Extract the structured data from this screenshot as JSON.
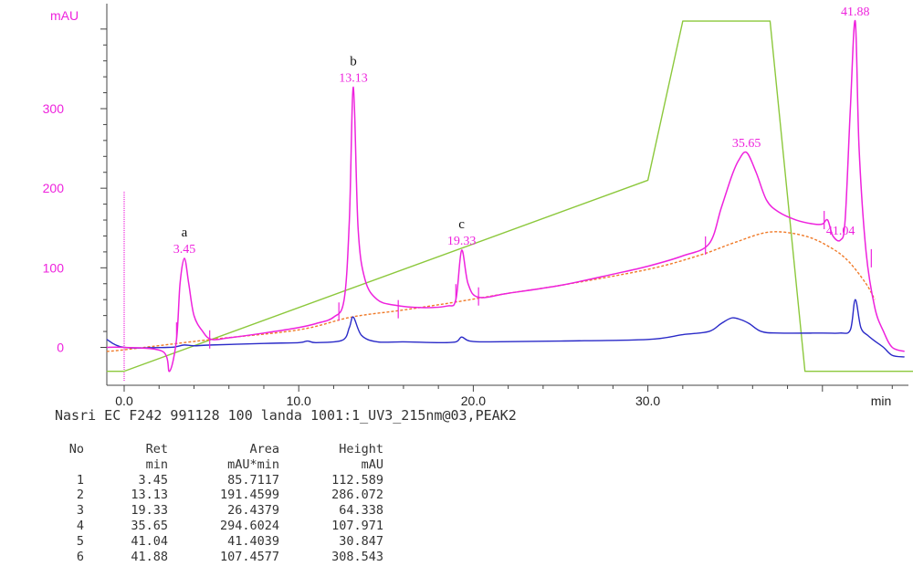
{
  "chart_data": {
    "type": "line",
    "y_unit": "mAU",
    "x_unit": "min",
    "x_ticks": [
      "0.0",
      "10.0",
      "20.0",
      "30.0"
    ],
    "y_ticks": [
      "0",
      "100",
      "200",
      "300"
    ],
    "xlim": [
      -1,
      46
    ],
    "ylim": [
      -35,
      430
    ],
    "colors": {
      "magenta": "#ee22dd",
      "blue": "#2a2ac8",
      "green": "#8cc83c",
      "orange": "#f07a28",
      "axis": "#444444"
    },
    "series": [
      {
        "color": "magenta",
        "x": [
          -1,
          0,
          2.2,
          2.6,
          3.0,
          3.2,
          3.45,
          3.7,
          4.0,
          4.5,
          5.0,
          6.0,
          8.0,
          10.0,
          11.0,
          12.0,
          12.6,
          12.9,
          13.13,
          13.4,
          13.8,
          14.5,
          15.5,
          17.0,
          18.5,
          19.0,
          19.33,
          19.7,
          20.3,
          22.0,
          25.0,
          28.0,
          30.0,
          32.0,
          33.5,
          34.2,
          34.8,
          35.2,
          35.65,
          36.2,
          36.8,
          37.5,
          38.5,
          39.5,
          40.0,
          40.3,
          40.6,
          41.04,
          41.3,
          41.6,
          41.88,
          42.1,
          42.5,
          43.0,
          43.5,
          44.0,
          44.7
        ],
        "y": [
          0,
          0,
          -5,
          -30,
          10,
          80,
          112,
          80,
          40,
          20,
          10,
          12,
          18,
          25,
          30,
          38,
          60,
          160,
          327,
          150,
          85,
          60,
          53,
          50,
          52,
          60,
          122,
          80,
          63,
          68,
          78,
          92,
          102,
          115,
          130,
          175,
          215,
          235,
          245,
          220,
          185,
          170,
          160,
          155,
          155,
          160,
          140,
          135,
          160,
          300,
          410,
          250,
          120,
          50,
          20,
          0,
          -5
        ]
      },
      {
        "color": "blue",
        "x": [
          -1,
          0,
          2.5,
          3.0,
          3.45,
          4.0,
          5.0,
          8.0,
          10.0,
          10.5,
          11.0,
          12.5,
          12.9,
          13.13,
          13.6,
          14.5,
          16.0,
          18.0,
          19.0,
          19.33,
          19.8,
          21.0,
          25.0,
          30.0,
          32.0,
          33.5,
          34.2,
          34.8,
          35.3,
          35.8,
          36.5,
          37.5,
          40.0,
          41.0,
          41.6,
          41.88,
          42.2,
          42.6,
          43.0,
          43.5,
          44.0,
          44.7
        ],
        "y": [
          10,
          0,
          0,
          1,
          3,
          2,
          3,
          5,
          6,
          8,
          6,
          9,
          25,
          38,
          15,
          7,
          7,
          6,
          7,
          13,
          8,
          7,
          8,
          10,
          16,
          20,
          30,
          37,
          35,
          30,
          20,
          18,
          18,
          18,
          22,
          60,
          25,
          15,
          8,
          0,
          -10,
          -12
        ]
      },
      {
        "color": "green",
        "x": [
          -1,
          0,
          30,
          32.0,
          37.0,
          39.0,
          45.2
        ],
        "y": [
          -30,
          -30,
          210,
          410,
          410,
          -30,
          -30
        ]
      },
      {
        "color": "orange",
        "dashed": true,
        "x": [
          -1,
          0,
          5,
          10,
          13,
          16,
          19,
          22,
          25,
          30,
          33,
          35,
          37,
          39,
          40.5,
          41.5,
          42.5,
          43.0
        ],
        "y": [
          -5,
          -3,
          10,
          22,
          38,
          47,
          57,
          68,
          78,
          98,
          116,
          132,
          145,
          140,
          125,
          108,
          80,
          60
        ]
      }
    ],
    "peak_labels": [
      {
        "x": 3.45,
        "y": 112,
        "rt": "3.45",
        "letter": "a"
      },
      {
        "x": 13.13,
        "y": 327,
        "rt": "13.13",
        "letter": "b"
      },
      {
        "x": 19.33,
        "y": 122,
        "rt": "19.33",
        "letter": "c"
      },
      {
        "x": 35.65,
        "y": 245,
        "rt": "35.65",
        "letter": ""
      },
      {
        "x": 41.04,
        "y": 135,
        "rt": "41.04",
        "letter": ""
      },
      {
        "x": 41.88,
        "y": 410,
        "rt": "41.88",
        "letter": ""
      }
    ],
    "integration_marks": [
      {
        "x": 3.0,
        "y": 20
      },
      {
        "x": 4.9,
        "y": 10
      },
      {
        "x": 12.3,
        "y": 45
      },
      {
        "x": 15.7,
        "y": 48
      },
      {
        "x": 19.0,
        "y": 68
      },
      {
        "x": 20.3,
        "y": 64
      },
      {
        "x": 33.3,
        "y": 128
      },
      {
        "x": 40.1,
        "y": 160
      },
      {
        "x": 42.8,
        "y": 112
      }
    ],
    "injection_marker_x": 0
  },
  "caption": "Nasri EC F242 991128 100 landa 1001:1_UV3_215nm@03,PEAK2",
  "table": {
    "header1": [
      "No",
      "Ret",
      "Area",
      "Height"
    ],
    "header2": [
      "",
      "min",
      "mAU*min",
      "mAU"
    ],
    "rows": [
      [
        "1",
        "3.45",
        "85.7117",
        "112.589"
      ],
      [
        "2",
        "13.13",
        "191.4599",
        "286.072"
      ],
      [
        "3",
        "19.33",
        "26.4379",
        "64.338"
      ],
      [
        "4",
        "35.65",
        "294.6024",
        "107.971"
      ],
      [
        "5",
        "41.04",
        "41.4039",
        "30.847"
      ],
      [
        "6",
        "41.88",
        "107.4577",
        "308.543"
      ]
    ]
  }
}
